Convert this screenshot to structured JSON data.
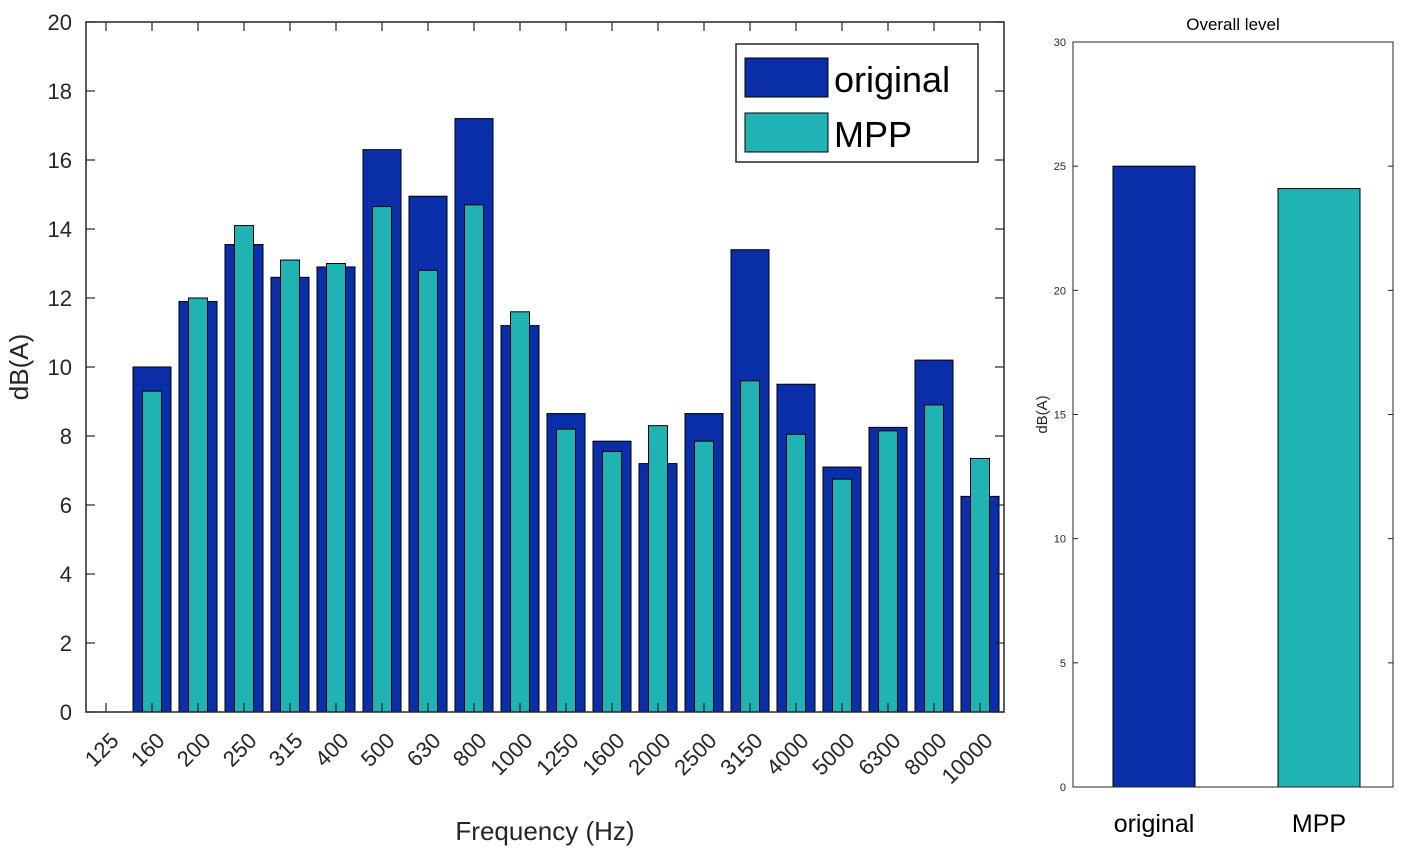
{
  "chart_data": [
    {
      "type": "bar",
      "title": "",
      "xlabel": "Frequency (Hz)",
      "ylabel": "dB(A)",
      "ylim": [
        0,
        20
      ],
      "yticks": [
        0,
        2,
        4,
        6,
        8,
        10,
        12,
        14,
        16,
        18,
        20
      ],
      "grid": false,
      "legend_position": "top-right",
      "categories": [
        "125",
        "160",
        "200",
        "250",
        "315",
        "400",
        "500",
        "630",
        "800",
        "1000",
        "1250",
        "1600",
        "2000",
        "2500",
        "3150",
        "4000",
        "5000",
        "6300",
        "8000",
        "10000"
      ],
      "series": [
        {
          "name": "original",
          "color": "#0a2ea8",
          "values": [
            0,
            10.0,
            11.9,
            13.55,
            12.6,
            12.9,
            16.3,
            14.95,
            17.2,
            11.2,
            8.65,
            7.85,
            7.2,
            8.65,
            13.4,
            9.5,
            7.1,
            8.25,
            10.2,
            6.25
          ]
        },
        {
          "name": "MPP",
          "color": "#1fb3b3",
          "values": [
            0,
            9.3,
            12.0,
            14.1,
            13.1,
            13.0,
            14.65,
            12.8,
            14.7,
            11.6,
            8.2,
            7.55,
            8.3,
            7.85,
            9.6,
            8.05,
            6.75,
            8.15,
            8.9,
            7.35
          ]
        }
      ]
    },
    {
      "type": "bar",
      "title": "Overall level",
      "xlabel": "",
      "ylabel": "dB(A)",
      "ylim": [
        0,
        30
      ],
      "yticks": [
        0,
        5,
        10,
        15,
        20,
        25,
        30
      ],
      "grid": false,
      "categories": [
        "original",
        "MPP"
      ],
      "values": [
        25.0,
        24.1
      ],
      "colors": [
        "#0a2ea8",
        "#1fb3b3"
      ]
    }
  ]
}
